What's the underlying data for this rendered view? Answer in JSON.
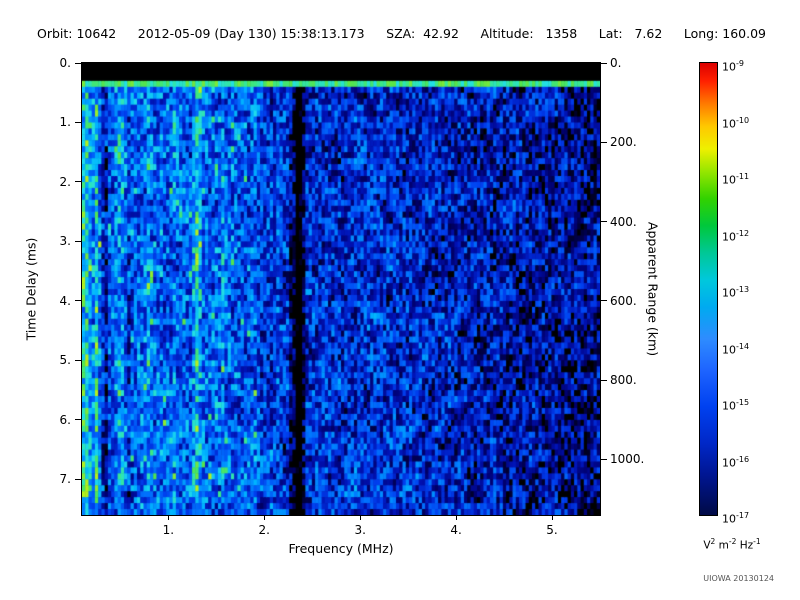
{
  "header": {
    "segments": [
      "Orbit: 10642",
      "2012-05-09 (Day 130) 15:38:13.173",
      "SZA:  42.92",
      "Altitude:   1358",
      "Lat:   7.62",
      "Long: 160.09"
    ]
  },
  "footer": {
    "credit": "UIOWA 20130124"
  },
  "chart_data": {
    "type": "heatmap",
    "title": "",
    "xlabel": "Frequency (MHz)",
    "ylabel_left": "Time Delay (ms)",
    "ylabel_right": "Apparent Range (km)",
    "x_range_mhz": [
      0.1,
      5.5
    ],
    "y_range_ms": [
      0.0,
      7.6
    ],
    "km_per_ms": 150,
    "x_ticks": [
      {
        "f": 1,
        "label": "1."
      },
      {
        "f": 2,
        "label": "2."
      },
      {
        "f": 3,
        "label": "3."
      },
      {
        "f": 4,
        "label": "4."
      },
      {
        "f": 5,
        "label": "5."
      }
    ],
    "y_ticks": [
      {
        "ms": 0,
        "label": "0."
      },
      {
        "ms": 1,
        "label": "1."
      },
      {
        "ms": 2,
        "label": "2."
      },
      {
        "ms": 3,
        "label": "3."
      },
      {
        "ms": 4,
        "label": "4."
      },
      {
        "ms": 5,
        "label": "5."
      },
      {
        "ms": 6,
        "label": "6."
      },
      {
        "ms": 7,
        "label": "7."
      }
    ],
    "range_ticks": [
      {
        "km": 0,
        "label": "0."
      },
      {
        "km": 200,
        "label": "200."
      },
      {
        "km": 400,
        "label": "400."
      },
      {
        "km": 600,
        "label": "600."
      },
      {
        "km": 800,
        "label": "800."
      },
      {
        "km": 1000,
        "label": "1000."
      }
    ],
    "colorbar": {
      "exponents": [
        "-9",
        "-10",
        "-11",
        "-12",
        "-13",
        "-14",
        "-15",
        "-16",
        "-17"
      ],
      "unit_tokens": [
        {
          "t": "V"
        },
        {
          "s": "2"
        },
        {
          "t": " m"
        },
        {
          "s": "-2"
        },
        {
          "t": " Hz"
        },
        {
          "s": "-1"
        }
      ],
      "stops": [
        [
          0.0,
          "#dc0000"
        ],
        [
          0.04,
          "#ff2000"
        ],
        [
          0.09,
          "#ff7a00"
        ],
        [
          0.14,
          "#ffc800"
        ],
        [
          0.19,
          "#eef000"
        ],
        [
          0.24,
          "#96e600"
        ],
        [
          0.3,
          "#32d200"
        ],
        [
          0.36,
          "#00c83c"
        ],
        [
          0.42,
          "#00c896"
        ],
        [
          0.48,
          "#00c8dc"
        ],
        [
          0.54,
          "#00aaf0"
        ],
        [
          0.61,
          "#2e8cff"
        ],
        [
          0.68,
          "#1e64ff"
        ],
        [
          0.76,
          "#0041f0"
        ],
        [
          0.84,
          "#0028c8"
        ],
        [
          0.91,
          "#001693"
        ],
        [
          1.0,
          "#000a46"
        ]
      ]
    },
    "colormap_stops": [
      [
        0.0,
        "#000000"
      ],
      [
        0.06,
        "#000022"
      ],
      [
        0.15,
        "#000070"
      ],
      [
        0.28,
        "#0012b4"
      ],
      [
        0.42,
        "#0040f0"
      ],
      [
        0.55,
        "#0078ff"
      ],
      [
        0.68,
        "#00b4ff"
      ],
      [
        0.78,
        "#22dfe8"
      ],
      [
        0.86,
        "#39e88a"
      ],
      [
        0.93,
        "#55e44b"
      ],
      [
        1.0,
        "#b4f01e"
      ]
    ],
    "noise": {
      "seed": 20130509,
      "nx": 160,
      "ny": 76,
      "base_intercept": 0.47,
      "base_slope_per_mhz": 0.037,
      "random_amplitude": 0.5,
      "blotch_amplitude": 0.22,
      "black_threshold": 0.055,
      "low_freq_boost_below_mhz": 1.9,
      "low_freq_boost": 0.05,
      "sparkle_below_mhz": 2.0,
      "sparkle_probability": 0.06,
      "sparkle_amount": 0.25,
      "high_freq_fade_above_mhz": 3.7,
      "high_freq_fade_slope": 0.035
    },
    "features": {
      "top_blackout_ms": 0.26,
      "surface_echo_line_ms": 0.33,
      "echo_halfwidth_ms": 0.06,
      "bright_stripes": [
        {
          "mhz": 0.14,
          "halfwidth": 0.06,
          "boost": 0.32
        },
        {
          "mhz": 0.25,
          "halfwidth": 0.04,
          "boost": 0.2
        },
        {
          "mhz": 0.5,
          "halfwidth": 0.06,
          "boost": 0.16
        },
        {
          "mhz": 0.8,
          "halfwidth": 0.05,
          "boost": 0.1
        },
        {
          "mhz": 1.07,
          "halfwidth": 0.04,
          "boost": 0.1
        },
        {
          "mhz": 1.3,
          "halfwidth": 0.06,
          "boost": 0.26
        },
        {
          "mhz": 1.57,
          "halfwidth": 0.03,
          "boost": 0.1
        },
        {
          "mhz": 1.9,
          "halfwidth": 0.05,
          "boost": 0.12
        },
        {
          "mhz": 2.15,
          "halfwidth": 0.03,
          "boost": 0.08
        }
      ],
      "dark_stripes": [
        {
          "mhz": 0.34,
          "halfwidth": 0.035,
          "drop": -0.38
        },
        {
          "mhz": 0.6,
          "halfwidth": 0.03,
          "drop": -0.22
        },
        {
          "mhz": 2.28,
          "halfwidth": 0.03,
          "drop": -0.2
        },
        {
          "mhz": 2.36,
          "halfwidth": 0.08,
          "drop": -0.7
        }
      ]
    },
    "content_summary": "Radar sounder ionogram spectrogram: blue background noise, brightest (cyan/green speckle with vertical interference stripes) below ~2 MHz, a black blanking band then a bright green echo line near 0.3 ms delay spanning all frequencies, a black attenuation gap near 2.35 MHz, and progressively darker speckled noise with black patches above ~3.5 MHz."
  }
}
